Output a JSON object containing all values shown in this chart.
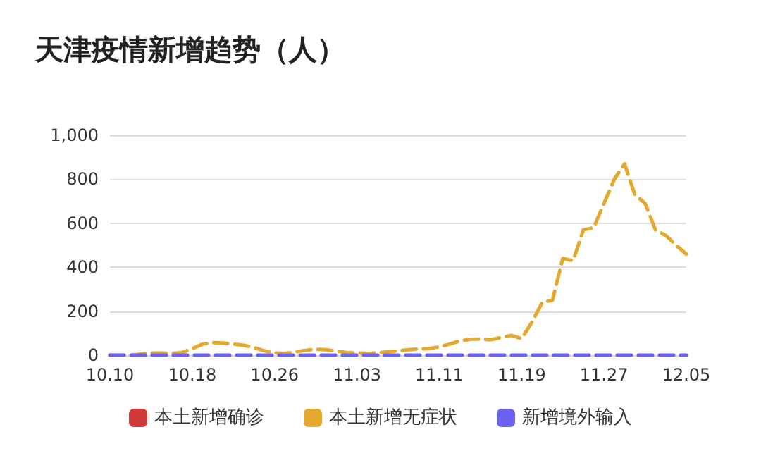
{
  "chart_data": {
    "type": "line",
    "title": "天津疫情新增趋势（人）",
    "categories": [
      "10.10",
      null,
      null,
      null,
      null,
      null,
      null,
      null,
      "10.18",
      null,
      null,
      null,
      null,
      null,
      null,
      null,
      "10.26",
      null,
      null,
      null,
      null,
      null,
      null,
      null,
      "11.03",
      null,
      null,
      null,
      null,
      null,
      null,
      null,
      "11.11",
      null,
      null,
      null,
      null,
      null,
      null,
      null,
      "11.19",
      null,
      null,
      null,
      null,
      null,
      null,
      null,
      "11.27",
      null,
      null,
      null,
      null,
      null,
      null,
      null,
      "12.05"
    ],
    "series": [
      {
        "name": "本土新增确诊",
        "color": "#d03a3a",
        "values": [
          null,
          null,
          null,
          null,
          null,
          null,
          null,
          null,
          null,
          null,
          null,
          null,
          null,
          null,
          null,
          null,
          null,
          null,
          null,
          null,
          null,
          null,
          null,
          null,
          null,
          null,
          null,
          null,
          null,
          null,
          null,
          null,
          null,
          null,
          null,
          null,
          null,
          null,
          null,
          null,
          null,
          null,
          null,
          null,
          null,
          null,
          null,
          null,
          null,
          null,
          null,
          null,
          null,
          null,
          null,
          null,
          null
        ]
      },
      {
        "name": "本土新增无症状",
        "color": "#e3a82e",
        "values": [
          0,
          0,
          0,
          5,
          10,
          10,
          8,
          12,
          30,
          50,
          57,
          55,
          50,
          45,
          35,
          20,
          10,
          8,
          15,
          22,
          27,
          25,
          18,
          12,
          10,
          8,
          10,
          15,
          20,
          25,
          28,
          30,
          38,
          50,
          65,
          72,
          73,
          70,
          80,
          90,
          75,
          150,
          240,
          250,
          440,
          430,
          570,
          580,
          690,
          800,
          870,
          730,
          690,
          570,
          545,
          500,
          460
        ]
      },
      {
        "name": "新增境外输入",
        "color": "#6b63f0",
        "values": [
          0,
          0,
          0,
          0,
          0,
          0,
          0,
          0,
          0,
          0,
          0,
          0,
          0,
          0,
          0,
          0,
          0,
          0,
          0,
          0,
          0,
          0,
          0,
          0,
          0,
          0,
          0,
          0,
          0,
          0,
          0,
          0,
          0,
          0,
          0,
          0,
          0,
          0,
          0,
          0,
          0,
          0,
          0,
          0,
          0,
          0,
          0,
          0,
          0,
          0,
          0,
          0,
          0,
          0,
          0,
          0,
          0
        ]
      }
    ],
    "ylim": [
      0,
      1000
    ],
    "yticks": [
      0,
      200,
      400,
      600,
      800,
      {
        "value": 1000,
        "label": "1,000"
      }
    ],
    "grid": "y",
    "legend": "bottom",
    "line_style": "dashed",
    "marker": "none"
  }
}
